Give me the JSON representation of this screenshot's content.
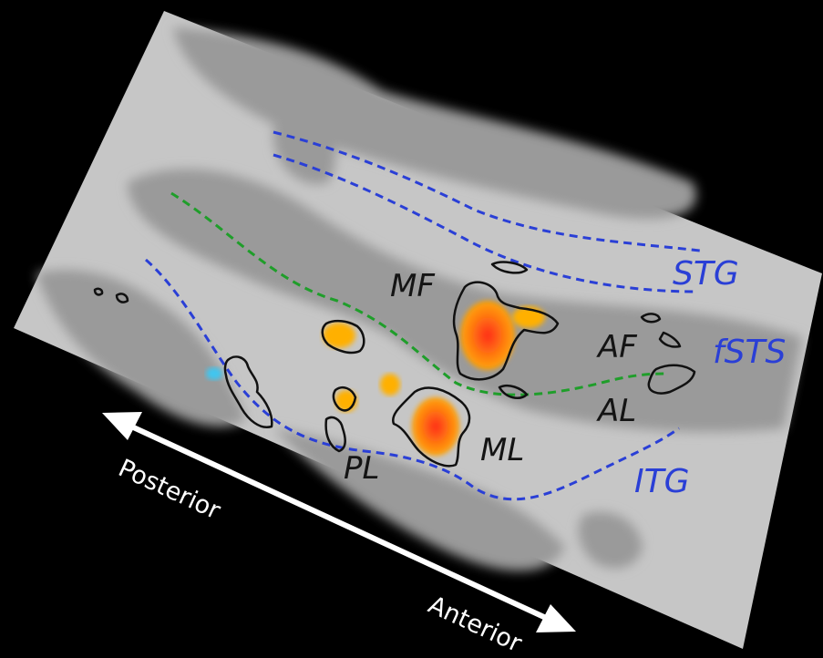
{
  "colors": {
    "background": "#000000",
    "cortex_light": "#c6c6c6",
    "cortex_dark": "#9a9a9a",
    "sulcus_line": "#2a3fd6",
    "fundus_line": "#1f9e2a",
    "roi_outline": "#111111",
    "activation_hot": "#ffb000",
    "activation_core": "#ff2a1a",
    "activation_negative": "#3fc6f0",
    "label_black": "#141414",
    "label_blue": "#2a3fd6",
    "arrow_white": "#ffffff"
  },
  "sulcal_labels": {
    "stg": "STG",
    "fsts": "fSTS",
    "itg": "ITG"
  },
  "roi_labels": {
    "mf": "MF",
    "af": "AF",
    "al": "AL",
    "ml": "ML",
    "pl": "PL"
  },
  "axis": {
    "posterior": "Posterior",
    "anterior": "Anterior"
  }
}
